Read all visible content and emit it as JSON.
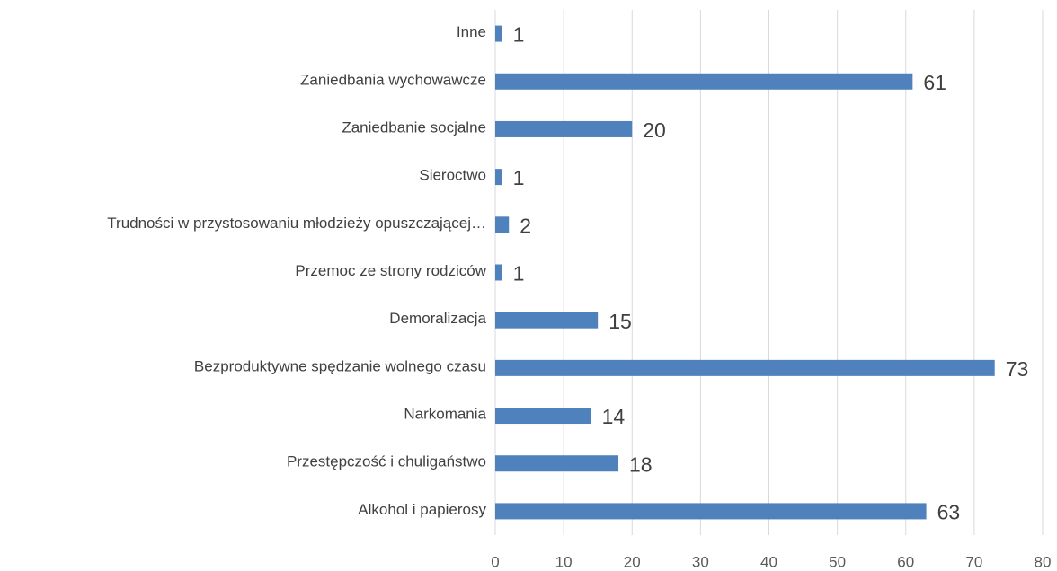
{
  "chart_data": {
    "type": "bar",
    "orientation": "horizontal",
    "categories": [
      "Inne",
      "Zaniedbania wychowawcze",
      "Zaniedbanie socjalne",
      "Sieroctwo",
      "Trudności w przystosowaniu młodzieży opuszczającej…",
      "Przemoc ze strony rodziców",
      "Demoralizacja",
      "Bezproduktywne spędzanie wolnego czasu",
      "Narkomania",
      "Przestępczość i chuligaństwo",
      "Alkohol i papierosy"
    ],
    "values": [
      1,
      61,
      20,
      1,
      2,
      1,
      15,
      73,
      14,
      18,
      63
    ],
    "color": "#4f81bd",
    "xlim": [
      0,
      80
    ],
    "xticks": [
      0,
      10,
      20,
      30,
      40,
      50,
      60,
      70,
      80
    ],
    "grid": true
  }
}
